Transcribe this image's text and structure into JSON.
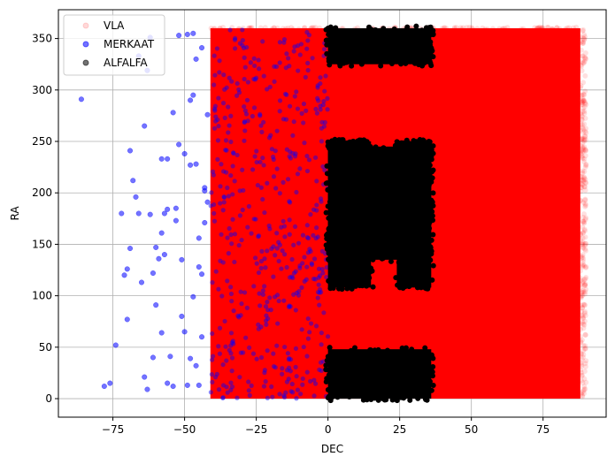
{
  "chart_data": {
    "type": "scatter",
    "title": "",
    "xlabel": "DEC",
    "ylabel": "RA",
    "xlim": [
      -94,
      97
    ],
    "ylim": [
      -18,
      378
    ],
    "xticks": [
      -75,
      -50,
      -25,
      0,
      25,
      50,
      75
    ],
    "yticks": [
      0,
      50,
      100,
      150,
      200,
      250,
      300,
      350
    ],
    "grid": true,
    "legend": {
      "placement": "upper-left",
      "entries": [
        "VLA",
        "MERKAAT",
        "ALFALFA"
      ]
    },
    "series": [
      {
        "name": "VLA",
        "color": "#ff0000",
        "alpha": 0.1,
        "marker": "circle",
        "density_regions": [
          {
            "dec": [
              -41,
              88
            ],
            "ra": [
              0,
              360
            ]
          }
        ]
      },
      {
        "name": "MERKAAT",
        "color": "#0000ff",
        "alpha": 0.5,
        "marker": "circle",
        "points": [
          [
            -86,
            291
          ],
          [
            -76,
            15
          ],
          [
            -74,
            52
          ],
          [
            -72,
            180
          ],
          [
            -71,
            120
          ],
          [
            -70,
            77
          ],
          [
            -68,
            212
          ],
          [
            -67,
            196
          ],
          [
            -66,
            180
          ],
          [
            -65,
            113
          ],
          [
            -64,
            21
          ],
          [
            -63,
            9
          ],
          [
            -62,
            179
          ],
          [
            -61,
            122
          ],
          [
            -60,
            147
          ],
          [
            -60,
            91
          ],
          [
            -59,
            136
          ],
          [
            -58,
            161
          ],
          [
            -58,
            64
          ],
          [
            -57,
            180
          ],
          [
            -56,
            233
          ],
          [
            -55,
            41
          ],
          [
            -54,
            12
          ],
          [
            -53,
            185
          ],
          [
            -52,
            247
          ],
          [
            -51,
            135
          ],
          [
            -50,
            238
          ],
          [
            -50,
            65
          ],
          [
            -49,
            354
          ],
          [
            -48,
            290
          ],
          [
            -47,
            99
          ],
          [
            -46,
            228
          ],
          [
            -45,
            156
          ],
          [
            -45,
            13
          ],
          [
            -44,
            60
          ],
          [
            -44,
            121
          ],
          [
            -43,
            205
          ],
          [
            -42,
            276
          ],
          [
            -78,
            12
          ],
          [
            -69,
            146
          ],
          [
            -66,
            333
          ],
          [
            -63,
            319
          ],
          [
            -61,
            40
          ],
          [
            -58,
            233
          ],
          [
            -56,
            184
          ],
          [
            -56,
            15
          ],
          [
            -54,
            278
          ],
          [
            -52,
            353
          ],
          [
            -47,
            355
          ],
          [
            -46,
            32
          ],
          [
            -43,
            202
          ],
          [
            -42,
            191
          ],
          [
            -48,
            227
          ],
          [
            -51,
            80
          ],
          [
            -53,
            173
          ],
          [
            -57,
            140
          ],
          [
            -62,
            351
          ],
          [
            -64,
            265
          ],
          [
            -69,
            241
          ],
          [
            -70,
            126
          ],
          [
            -48,
            39
          ],
          [
            -45,
            128
          ],
          [
            -47,
            295
          ],
          [
            -46,
            330
          ],
          [
            -44,
            341
          ],
          [
            -43,
            171
          ],
          [
            -49,
            13
          ]
        ],
        "dense_region": {
          "dec": [
            -41,
            0
          ],
          "ra": [
            0,
            360
          ],
          "count": 480
        }
      },
      {
        "name": "ALFALFA",
        "color": "#000000",
        "alpha": 0.5,
        "marker": "circle",
        "density_regions": [
          {
            "dec": [
              0,
              36
            ],
            "ra": [
              0,
              48
            ]
          },
          {
            "dec": [
              0,
              36
            ],
            "ra": [
              325,
              360
            ]
          },
          {
            "dec": [
              0,
              15
            ],
            "ra": [
              108,
              250
            ]
          },
          {
            "dec": [
              24,
              36
            ],
            "ra": [
              108,
              250
            ]
          },
          {
            "dec": [
              0,
              36
            ],
            "ra": [
              135,
              245
            ]
          }
        ]
      }
    ]
  }
}
